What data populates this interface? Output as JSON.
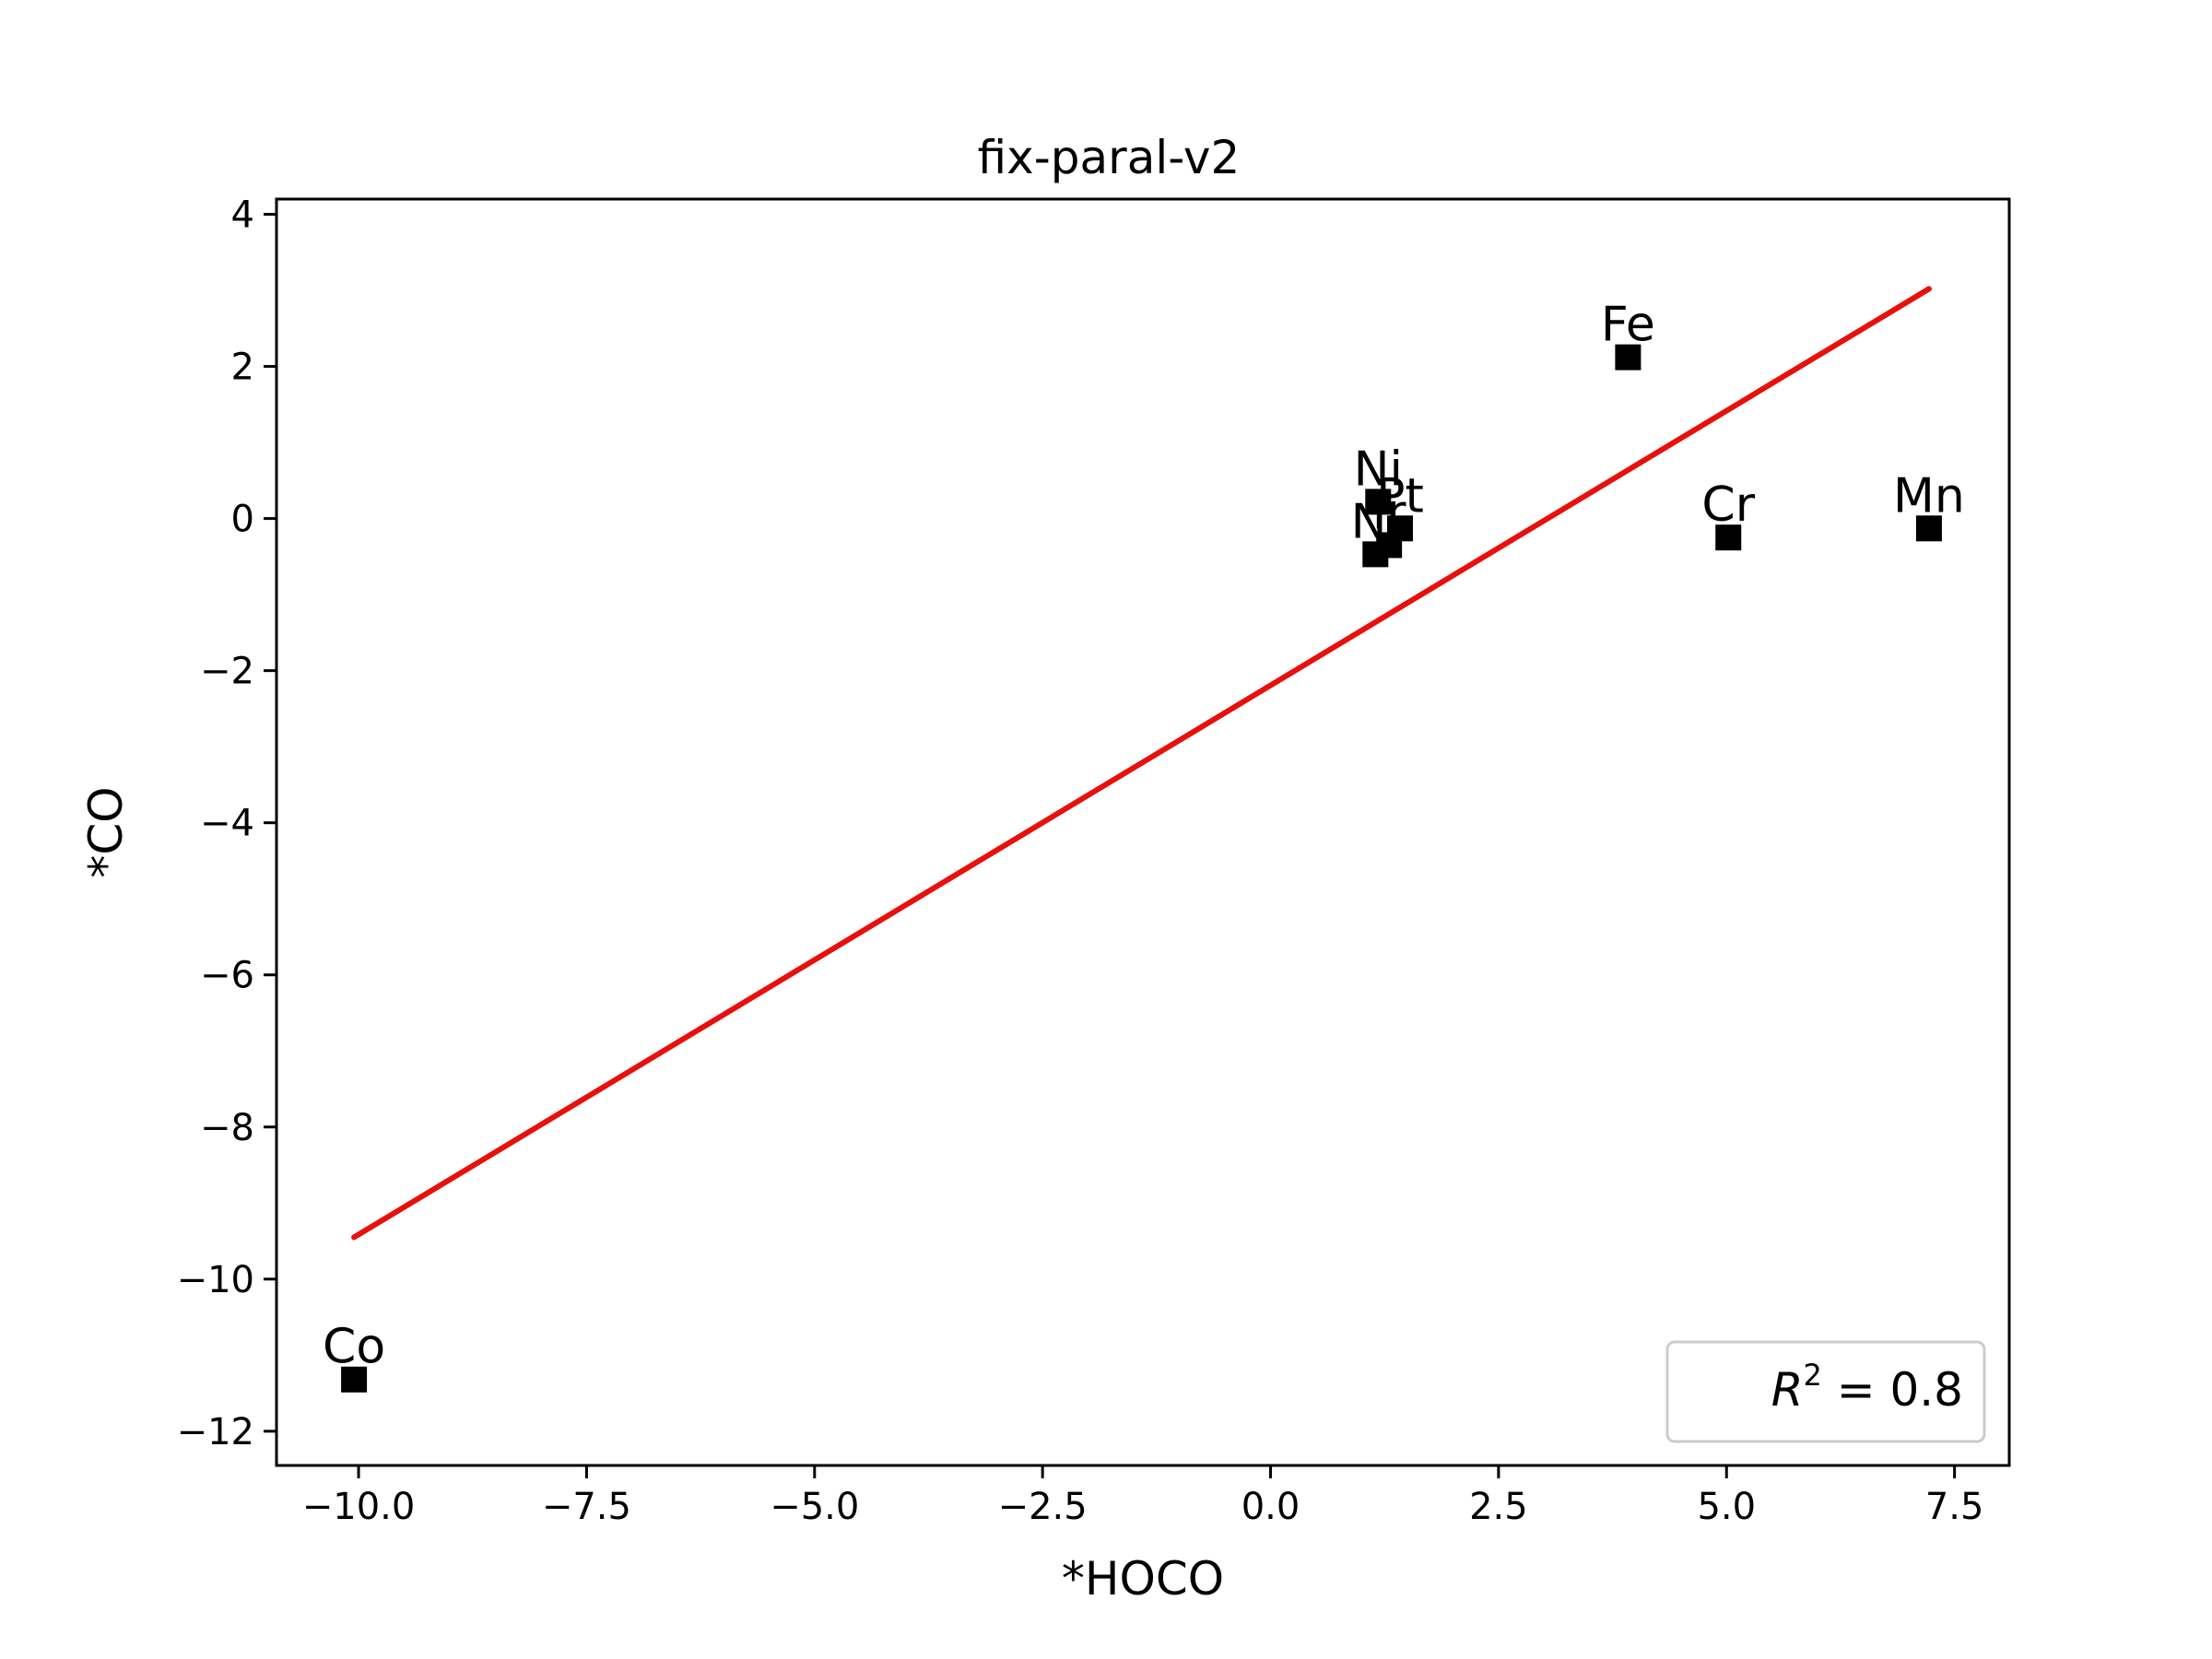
{
  "chart_data": {
    "type": "scatter",
    "title": "fix-paral-v2",
    "xlabel": "*HOCO",
    "ylabel": "*CO",
    "xlim": [
      -10.9,
      8.1
    ],
    "ylim": [
      -12.45,
      4.2
    ],
    "x_ticks": [
      -10.0,
      -7.5,
      -5.0,
      -2.5,
      0.0,
      2.5,
      5.0,
      7.5
    ],
    "x_tick_labels": [
      "−10.0",
      "−7.5",
      "−5.0",
      "−2.5",
      "0.0",
      "2.5",
      "5.0",
      "7.5"
    ],
    "y_ticks": [
      4,
      2,
      0,
      -2,
      -4,
      -6,
      -8,
      -10,
      -12
    ],
    "y_tick_labels": [
      "4",
      "2",
      "0",
      "−2",
      "−4",
      "−6",
      "−8",
      "−10",
      "−12"
    ],
    "grid": false,
    "points": [
      {
        "label": "Co",
        "x": -10.05,
        "y": -11.32
      },
      {
        "label": "Fe",
        "x": 3.92,
        "y": 2.12
      },
      {
        "label": "Ni",
        "x": 1.18,
        "y": 0.22
      },
      {
        "label": "Pt",
        "x": 1.42,
        "y": -0.13
      },
      {
        "label": "Ir",
        "x": 1.3,
        "y": -0.35
      },
      {
        "label": "Ni",
        "x": 1.15,
        "y": -0.47
      },
      {
        "label": "Cr",
        "x": 5.02,
        "y": -0.25
      },
      {
        "label": "Mn",
        "x": 7.22,
        "y": -0.13
      }
    ],
    "fit_line": {
      "x": [
        -10.05,
        7.22
      ],
      "y": [
        -9.45,
        3.02
      ],
      "color": "#e8100c"
    },
    "marker": {
      "shape": "square",
      "color": "#000000"
    },
    "legend": {
      "text_prefix": "R",
      "exponent": "2",
      "text_suffix": " = 0.8",
      "placement": "lower-right"
    }
  }
}
